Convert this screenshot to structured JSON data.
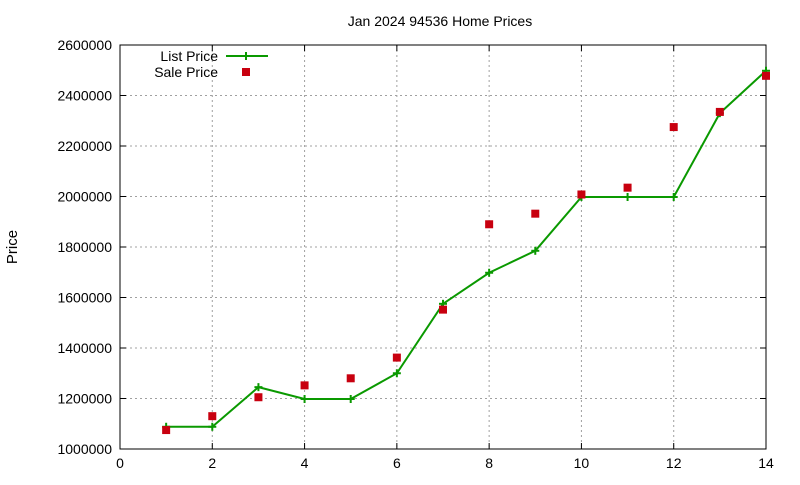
{
  "chart_data": {
    "type": "line",
    "title": "Jan 2024 94536 Home Prices",
    "xlabel": "",
    "ylabel": "Price",
    "xlim": [
      0,
      14
    ],
    "ylim": [
      1000000,
      2600000
    ],
    "xticks": [
      0,
      2,
      4,
      6,
      8,
      10,
      12,
      14
    ],
    "xtick_labels": [
      "0",
      "2",
      "4",
      "6",
      "8",
      "10",
      "12",
      "14"
    ],
    "yticks": [
      1000000,
      1200000,
      1400000,
      1600000,
      1800000,
      2000000,
      2200000,
      2400000,
      2600000
    ],
    "ytick_labels": [
      "1000000",
      "1200000",
      "1400000",
      "1600000",
      "1800000",
      "2000000",
      "2200000",
      "2400000",
      "2600000"
    ],
    "grid": true,
    "legend_position": "top-left",
    "series": [
      {
        "name": "List Price",
        "style": "line-points",
        "marker": "plus",
        "color": "#0a9900",
        "x": [
          1,
          2,
          3,
          4,
          5,
          6,
          7,
          8,
          9,
          10,
          11,
          12,
          13,
          14
        ],
        "y": [
          1088000,
          1088000,
          1245000,
          1198000,
          1198000,
          1300000,
          1575000,
          1698000,
          1785000,
          1998000,
          1998000,
          1998000,
          2330000,
          2498000
        ]
      },
      {
        "name": "Sale Price",
        "style": "points",
        "marker": "square",
        "color": "#c8000f",
        "x": [
          1,
          2,
          3,
          4,
          5,
          6,
          7,
          8,
          9,
          10,
          11,
          12,
          13,
          14
        ],
        "y": [
          1075000,
          1130000,
          1205000,
          1252000,
          1280000,
          1362000,
          1552000,
          1890000,
          1932000,
          2008000,
          2035000,
          2275000,
          2335000,
          2478000
        ]
      }
    ]
  }
}
